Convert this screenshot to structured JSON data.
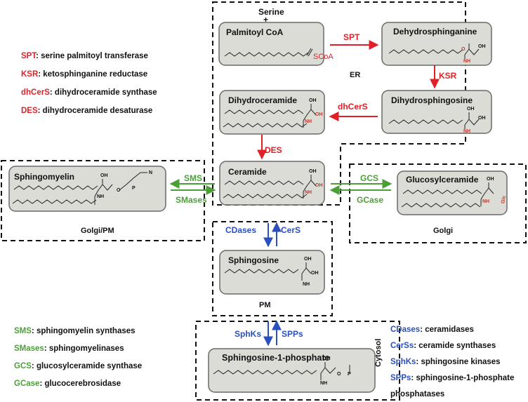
{
  "colors": {
    "red": "#e21f26",
    "green": "#4c9f37",
    "blue": "#2b4fbd",
    "box_fill": "#dcdcd6",
    "box_border": "#6a6a6a"
  },
  "compartments": {
    "er": "ER",
    "golgi_pm": "Golgi/PM",
    "golgi": "Golgi",
    "pm": "PM",
    "cytosol": "Cytosol"
  },
  "molecules": {
    "serine": "Serine",
    "plus": "+",
    "palmitoyl_coa": "Palmitoyl CoA",
    "scoa": "SCoA",
    "dehydrosphinganine": "Dehydrosphinganine",
    "dihydrosphingosine": "Dihydrosphingosine",
    "dihydroceramide": "Dihydroceramide",
    "ceramide": "Ceramide",
    "sphingomyelin": "Sphingomyelin",
    "glucosylceramide": "Glucosylceramide",
    "sphingosine": "Sphingosine",
    "s1p": "Sphingosine-1-phosphate",
    "oh": "OH",
    "nh2": "NH",
    "nh": "NH",
    "o": "O",
    "p": "P",
    "n": "N",
    "glc": "Glc"
  },
  "enzymes": {
    "spt": "SPT",
    "ksr": "KSR",
    "dhcers": "dhCerS",
    "des": "DES",
    "sms": "SMS",
    "smases": "SMases",
    "gcs": "GCS",
    "gcase": "GCase",
    "cdases": "CDases",
    "cers": "CerS",
    "sphks": "SphKs",
    "spps": "SPPs"
  },
  "legend_red": [
    {
      "abbr": "SPT",
      "text": ": serine palmitoyl transferase"
    },
    {
      "abbr": "KSR",
      "text": ": ketosphinganine reductase"
    },
    {
      "abbr": "dhCerS",
      "text": ": dihydroceramide synthase"
    },
    {
      "abbr": "DES",
      "text": ": dihydroceramide desaturase"
    }
  ],
  "legend_green": [
    {
      "abbr": "SMS",
      "text": ": sphingomyelin synthases"
    },
    {
      "abbr": "SMases",
      "text": ": sphingomyelinases"
    },
    {
      "abbr": "GCS",
      "text": ": glucosylceramide  synthase"
    },
    {
      "abbr": "GCase",
      "text": ": glucocerebrosidase"
    }
  ],
  "legend_blue": [
    {
      "abbr": "CDases",
      "text": ": ceramidases"
    },
    {
      "abbr": "CerSs",
      "text": ": ceramide synthases"
    },
    {
      "abbr": "SphKs",
      "text": ": sphingosine kinases"
    },
    {
      "abbr": "SPPs",
      "text": ": sphingosine-1-phosphate"
    },
    {
      "abbr": "",
      "text": "phosphatases"
    }
  ]
}
